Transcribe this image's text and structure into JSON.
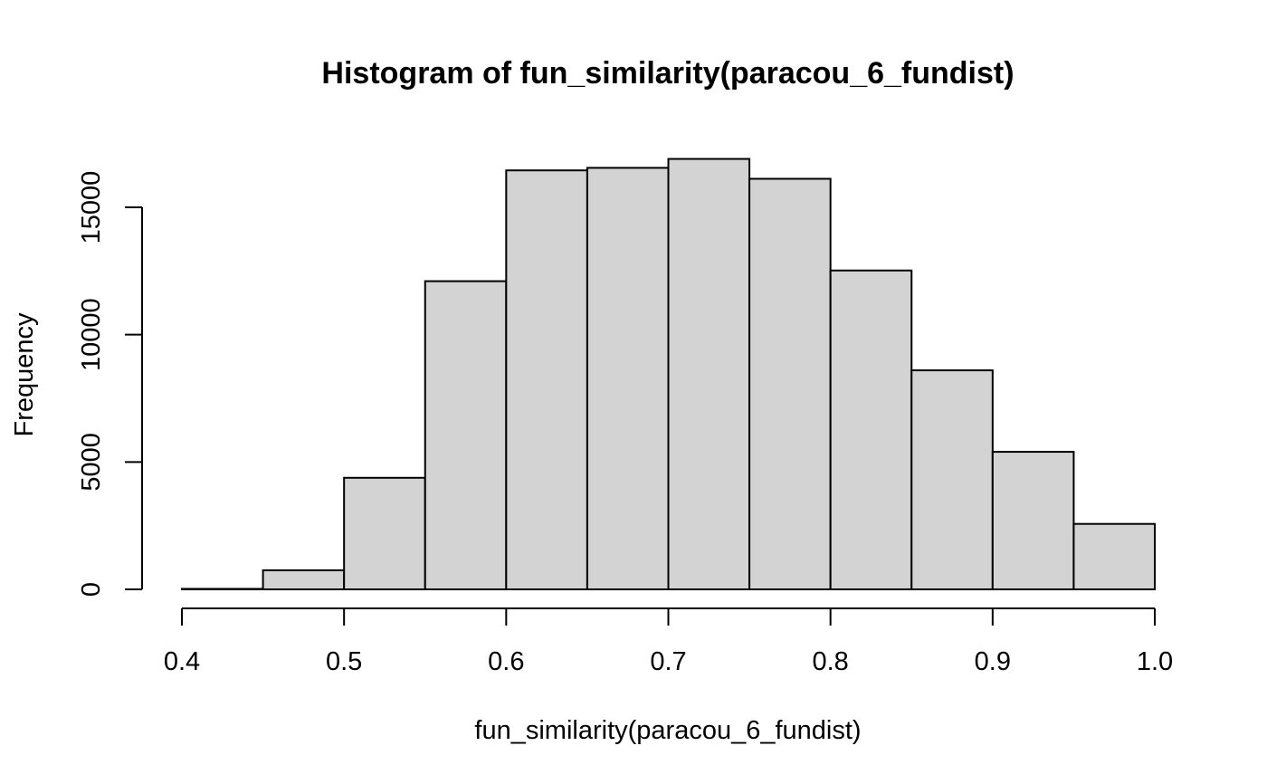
{
  "chart_data": {
    "type": "bar",
    "title": "Histogram of fun_similarity(paracou_6_fundist)",
    "xlabel": "fun_similarity(paracou_6_fundist)",
    "ylabel": "Frequency",
    "bins": [
      {
        "from": 0.4,
        "to": 0.45,
        "count": 20
      },
      {
        "from": 0.45,
        "to": 0.5,
        "count": 750
      },
      {
        "from": 0.5,
        "to": 0.55,
        "count": 4380
      },
      {
        "from": 0.55,
        "to": 0.6,
        "count": 12100
      },
      {
        "from": 0.6,
        "to": 0.65,
        "count": 16450
      },
      {
        "from": 0.65,
        "to": 0.7,
        "count": 16550
      },
      {
        "from": 0.7,
        "to": 0.75,
        "count": 16900
      },
      {
        "from": 0.75,
        "to": 0.8,
        "count": 16120
      },
      {
        "from": 0.8,
        "to": 0.85,
        "count": 12520
      },
      {
        "from": 0.85,
        "to": 0.9,
        "count": 8600
      },
      {
        "from": 0.9,
        "to": 0.95,
        "count": 5400
      },
      {
        "from": 0.95,
        "to": 1.0,
        "count": 2570
      }
    ],
    "xlim": [
      0.4,
      1.0
    ],
    "ylim": [
      0,
      17000
    ],
    "x_ticks": [
      0.4,
      0.5,
      0.6,
      0.7,
      0.8,
      0.9,
      1.0
    ],
    "x_tick_labels": [
      "0.4",
      "0.5",
      "0.6",
      "0.7",
      "0.8",
      "0.9",
      "1.0"
    ],
    "y_ticks": [
      0,
      5000,
      10000,
      15000
    ],
    "y_tick_labels": [
      "0",
      "5000",
      "10000",
      "15000"
    ],
    "bar_color": "#d3d3d3",
    "border_color": "#000000",
    "grid": false,
    "legend": "none"
  }
}
